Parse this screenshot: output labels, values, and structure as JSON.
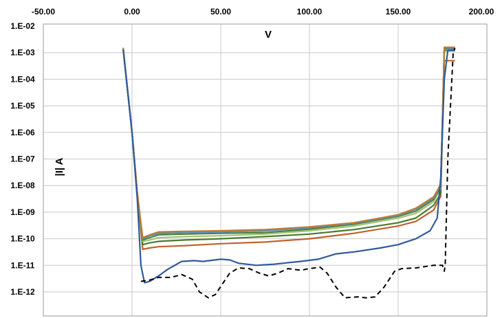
{
  "chart_data": {
    "type": "line",
    "xlabel": "V",
    "ylabel": "|I| A",
    "xlim": [
      -50,
      200
    ],
    "ylim_log10": [
      -13,
      -2
    ],
    "y_scale": "log",
    "grid": true,
    "x_ticks": [
      "-50.00",
      "0.00",
      "50.00",
      "100.00",
      "150.00",
      "200.00"
    ],
    "y_ticks": [
      "1.E-02",
      "1.E-03",
      "1.E-04",
      "1.E-05",
      "1.E-06",
      "1.E-07",
      "1.E-08",
      "1.E-09",
      "1.E-10",
      "1.E-11",
      "1.E-12"
    ],
    "series": [
      {
        "color": "#c0622b",
        "points": [
          [
            -5,
            0.0015
          ],
          [
            0,
            1e-06
          ],
          [
            3,
            5e-09
          ],
          [
            6,
            4e-11
          ],
          [
            10,
            4.5e-11
          ],
          [
            15,
            5e-11
          ],
          [
            30,
            5.5e-11
          ],
          [
            50,
            6.5e-11
          ],
          [
            75,
            7.5e-11
          ],
          [
            100,
            1e-10
          ],
          [
            125,
            1.6e-10
          ],
          [
            150,
            3e-10
          ],
          [
            160,
            4.5e-10
          ],
          [
            170,
            1.2e-09
          ],
          [
            174,
            4e-09
          ],
          [
            176,
            0.0005
          ],
          [
            182,
            0.0005
          ]
        ]
      },
      {
        "color": "#4a7a2c",
        "points": [
          [
            -5,
            0.0015
          ],
          [
            0,
            1e-06
          ],
          [
            3,
            5e-09
          ],
          [
            6,
            6e-11
          ],
          [
            10,
            7e-11
          ],
          [
            15,
            8e-11
          ],
          [
            30,
            9e-11
          ],
          [
            50,
            1e-10
          ],
          [
            75,
            1.2e-10
          ],
          [
            100,
            1.5e-10
          ],
          [
            125,
            2.2e-10
          ],
          [
            150,
            4e-10
          ],
          [
            160,
            6e-10
          ],
          [
            170,
            1.8e-09
          ],
          [
            174,
            5e-09
          ],
          [
            176,
            0.0012
          ],
          [
            182,
            0.0012
          ]
        ]
      },
      {
        "color": "#9cc472",
        "points": [
          [
            -5,
            0.0015
          ],
          [
            0,
            1e-06
          ],
          [
            3,
            5e-09
          ],
          [
            6,
            8e-11
          ],
          [
            10,
            9e-11
          ],
          [
            15,
            1.1e-10
          ],
          [
            30,
            1.2e-10
          ],
          [
            50,
            1.3e-10
          ],
          [
            75,
            1.5e-10
          ],
          [
            100,
            2e-10
          ],
          [
            125,
            3e-10
          ],
          [
            150,
            6e-10
          ],
          [
            160,
            9e-10
          ],
          [
            170,
            2.5e-09
          ],
          [
            174,
            8e-09
          ],
          [
            176,
            0.0013
          ],
          [
            182,
            0.0013
          ]
        ]
      },
      {
        "color": "#4f7d3a",
        "points": [
          [
            -5,
            0.0015
          ],
          [
            0,
            1e-06
          ],
          [
            3,
            5e-09
          ],
          [
            6,
            9e-11
          ],
          [
            10,
            1.1e-10
          ],
          [
            15,
            1.4e-10
          ],
          [
            30,
            1.5e-10
          ],
          [
            50,
            1.6e-10
          ],
          [
            75,
            1.7e-10
          ],
          [
            100,
            2.3e-10
          ],
          [
            125,
            3.5e-10
          ],
          [
            150,
            7e-10
          ],
          [
            160,
            1.1e-09
          ],
          [
            170,
            3e-09
          ],
          [
            174,
            9e-09
          ],
          [
            176,
            0.0014
          ],
          [
            182,
            0.0014
          ]
        ]
      },
      {
        "color": "#5a8fc0",
        "points": [
          [
            -5,
            0.0015
          ],
          [
            0,
            1e-06
          ],
          [
            3,
            5e-09
          ],
          [
            6,
            1e-10
          ],
          [
            10,
            1.3e-10
          ],
          [
            15,
            1.6e-10
          ],
          [
            30,
            1.7e-10
          ],
          [
            50,
            1.8e-10
          ],
          [
            75,
            2e-10
          ],
          [
            100,
            2.6e-10
          ],
          [
            125,
            3.8e-10
          ],
          [
            150,
            7.5e-10
          ],
          [
            160,
            1.3e-09
          ],
          [
            170,
            3.5e-09
          ],
          [
            174,
            1e-08
          ],
          [
            176,
            0.0015
          ],
          [
            182,
            0.0015
          ]
        ]
      },
      {
        "color": "#c07a30",
        "points": [
          [
            -5,
            0.0015
          ],
          [
            0,
            1e-06
          ],
          [
            3,
            5e-09
          ],
          [
            6,
            1.1e-10
          ],
          [
            10,
            1.4e-10
          ],
          [
            15,
            1.8e-10
          ],
          [
            30,
            1.9e-10
          ],
          [
            50,
            2e-10
          ],
          [
            75,
            2.2e-10
          ],
          [
            100,
            2.8e-10
          ],
          [
            125,
            4e-10
          ],
          [
            150,
            8e-10
          ],
          [
            160,
            1.4e-09
          ],
          [
            170,
            3.8e-09
          ],
          [
            174,
            1.1e-08
          ],
          [
            176,
            0.0016
          ],
          [
            182,
            0.0016
          ]
        ]
      },
      {
        "color": "#2e5a9a",
        "points": [
          [
            -5,
            0.0013
          ],
          [
            0,
            1e-06
          ],
          [
            3,
            3e-09
          ],
          [
            5,
            1e-11
          ],
          [
            7,
            2.2e-12
          ],
          [
            10,
            2.5e-12
          ],
          [
            15,
            4e-12
          ],
          [
            20,
            7e-12
          ],
          [
            28,
            1.4e-11
          ],
          [
            35,
            1.5e-11
          ],
          [
            40,
            1.4e-11
          ],
          [
            50,
            1.7e-11
          ],
          [
            55,
            1.6e-11
          ],
          [
            60,
            1.2e-11
          ],
          [
            70,
            1e-11
          ],
          [
            80,
            1.1e-11
          ],
          [
            90,
            1.3e-11
          ],
          [
            95,
            1.4e-11
          ],
          [
            105,
            1.7e-11
          ],
          [
            115,
            2.7e-11
          ],
          [
            125,
            3.2e-11
          ],
          [
            140,
            4.5e-11
          ],
          [
            150,
            6e-11
          ],
          [
            160,
            1e-10
          ],
          [
            168,
            2e-10
          ],
          [
            172,
            6e-10
          ],
          [
            174,
            2e-08
          ],
          [
            176,
            0.0001
          ],
          [
            178,
            0.0012
          ],
          [
            182,
            0.0012
          ]
        ]
      },
      {
        "color": "#000000",
        "dashed": true,
        "points": [
          [
            5,
            2.5e-12
          ],
          [
            10,
            2.8e-12
          ],
          [
            15,
            3.5e-12
          ],
          [
            22,
            3.5e-12
          ],
          [
            28,
            4.5e-12
          ],
          [
            34,
            3e-12
          ],
          [
            38,
            1e-12
          ],
          [
            43,
            6e-13
          ],
          [
            47,
            8e-13
          ],
          [
            50,
            1.6e-12
          ],
          [
            55,
            5e-12
          ],
          [
            60,
            8e-12
          ],
          [
            66,
            7.5e-12
          ],
          [
            72,
            5e-12
          ],
          [
            77,
            4e-12
          ],
          [
            82,
            5e-12
          ],
          [
            88,
            7.5e-12
          ],
          [
            95,
            6.5e-12
          ],
          [
            100,
            7.5e-12
          ],
          [
            106,
            8.5e-12
          ],
          [
            110,
            5e-12
          ],
          [
            115,
            1.5e-12
          ],
          [
            120,
            6e-13
          ],
          [
            127,
            6.5e-13
          ],
          [
            132,
            6e-13
          ],
          [
            137,
            6.5e-13
          ],
          [
            142,
            1.5e-12
          ],
          [
            148,
            6e-12
          ],
          [
            152,
            7.5e-12
          ],
          [
            160,
            8e-12
          ],
          [
            170,
            1e-11
          ],
          [
            175,
            1e-11
          ],
          [
            176,
            6e-12
          ],
          [
            176.5,
            1e-11
          ],
          [
            178,
            1e-07
          ],
          [
            181,
            0.001
          ],
          [
            182,
            0.0015
          ]
        ]
      }
    ]
  }
}
